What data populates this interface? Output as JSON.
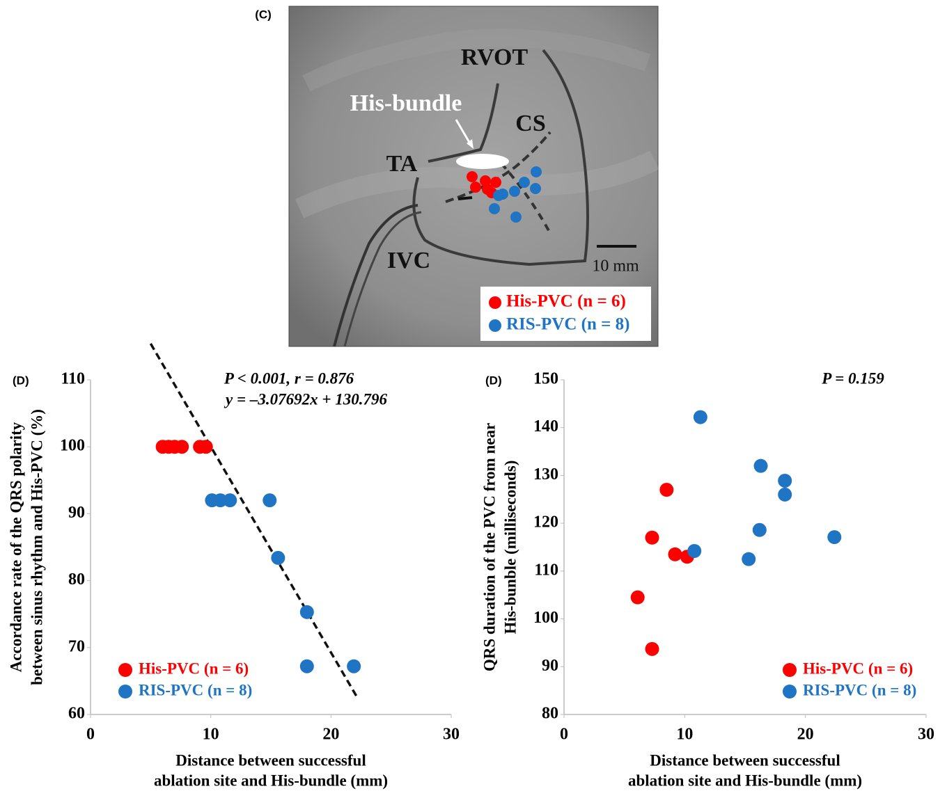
{
  "image": {
    "label": "(C)",
    "annotations": [
      "RVOT",
      "His-bundle",
      "CS",
      "TA",
      "IVC",
      "10 mm"
    ],
    "legend": [
      "His-PVC (n = 6)",
      "RIS-PVC (n = 8)"
    ]
  },
  "chart_data": [
    {
      "type": "scatter",
      "panel_label": "(D)",
      "annotations": [
        "P < 0.001, r = 0.876",
        "y = –3.07692x + 130.796"
      ],
      "x_label": [
        "Distance between successful",
        "ablation site and His-bundle (mm)"
      ],
      "y_label": [
        "Accordance rate of the QRS polarity",
        "between sinus rhythm and His-PVC (%)"
      ],
      "xlim": [
        0,
        30
      ],
      "xticks": [
        0,
        10,
        20,
        30
      ],
      "ylim": [
        60,
        110
      ],
      "yticks": [
        60,
        70,
        80,
        90,
        100,
        110
      ],
      "legend": "lower left",
      "trendline": {
        "slope": -3.07692,
        "intercept": 130.796,
        "x": [
          5.0,
          22.2
        ]
      },
      "series": [
        {
          "name": "His-PVC (n = 6)",
          "color": "#ff0000",
          "x": [
            6.0,
            6.5,
            7.0,
            7.6,
            9.1,
            9.6
          ],
          "values": [
            100,
            100,
            100,
            100,
            100,
            100
          ]
        },
        {
          "name": "RIS-PVC (n = 8)",
          "color": "#1f74c4",
          "x": [
            10.1,
            10.8,
            11.6,
            14.9,
            15.6,
            18.0,
            18.0,
            21.9
          ],
          "values": [
            92.0,
            92.0,
            92.0,
            92.0,
            83.4,
            75.3,
            67.2,
            67.2
          ]
        }
      ]
    },
    {
      "type": "scatter",
      "panel_label": "(D)",
      "annotations": [
        "P = 0.159"
      ],
      "x_label": [
        "Distance between successful",
        "ablation site and His-bundle (mm)"
      ],
      "y_label": [
        "QRS duration of the PVC from near",
        "His-bunble (milliseconds)"
      ],
      "xlim": [
        0,
        30
      ],
      "xticks": [
        0,
        10,
        20,
        30
      ],
      "ylim": [
        80,
        150
      ],
      "yticks": [
        80,
        90,
        100,
        110,
        120,
        130,
        140,
        150
      ],
      "legend": "lower right",
      "series": [
        {
          "name": "His-PVC (n = 6)",
          "color": "#ff0000",
          "x": [
            6.1,
            7.3,
            7.3,
            8.5,
            9.2,
            10.2
          ],
          "values": [
            104.5,
            93.7,
            117.0,
            127.0,
            113.5,
            113.0
          ]
        },
        {
          "name": "RIS-PVC (n = 8)",
          "color": "#1f74c4",
          "x": [
            10.8,
            11.3,
            15.3,
            16.2,
            16.3,
            18.3,
            18.3,
            22.4
          ],
          "values": [
            114.2,
            142.2,
            112.5,
            118.6,
            132.0,
            126.0,
            128.9,
            117.1
          ]
        }
      ]
    }
  ]
}
